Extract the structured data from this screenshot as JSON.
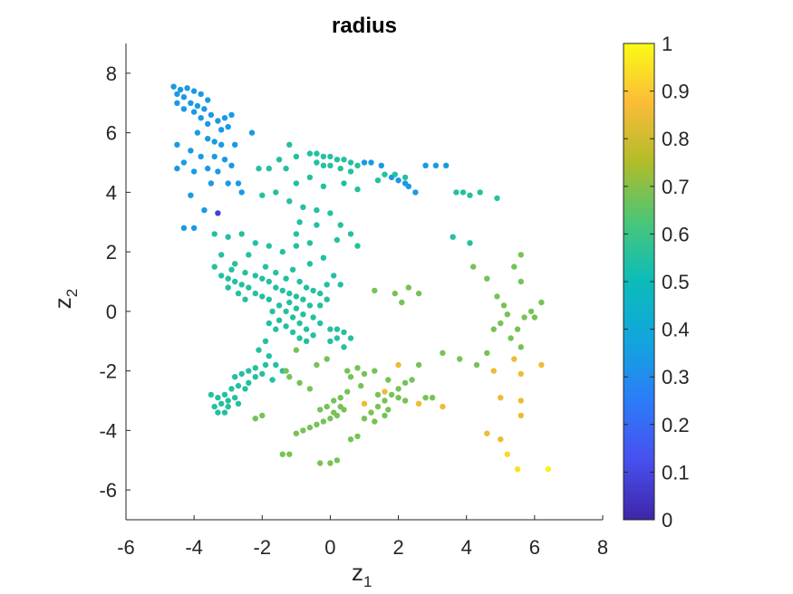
{
  "chart_data": {
    "type": "scatter",
    "title": "radius",
    "xlabel": {
      "base": "z",
      "sub": "1"
    },
    "ylabel": {
      "base": "z",
      "sub": "2"
    },
    "xlim": [
      -6,
      8
    ],
    "ylim": [
      -7,
      9
    ],
    "xticks": [
      "-6",
      "-4",
      "-2",
      "0",
      "2",
      "4",
      "6",
      "8"
    ],
    "yticks": [
      "-6",
      "-4",
      "-2",
      "0",
      "2",
      "4",
      "6",
      "8"
    ],
    "grid": false,
    "colorbar": {
      "colormap": "parula",
      "clim": [
        0,
        1
      ],
      "ticks": [
        "0",
        "0.1",
        "0.2",
        "0.3",
        "0.4",
        "0.5",
        "0.6",
        "0.7",
        "0.8",
        "0.9",
        "1"
      ]
    },
    "points_columns": [
      "z1",
      "z2",
      "radius"
    ],
    "points": [
      [
        -4.6,
        7.55,
        0.34
      ],
      [
        -4.4,
        7.45,
        0.34
      ],
      [
        -4.2,
        7.5,
        0.34
      ],
      [
        -4.0,
        7.4,
        0.34
      ],
      [
        -3.8,
        7.3,
        0.34
      ],
      [
        -3.6,
        7.1,
        0.34
      ],
      [
        -4.5,
        7.3,
        0.34
      ],
      [
        -4.3,
        7.2,
        0.34
      ],
      [
        -4.5,
        7.0,
        0.34
      ],
      [
        -4.1,
        7.0,
        0.34
      ],
      [
        -3.9,
        6.9,
        0.34
      ],
      [
        -3.7,
        6.8,
        0.34
      ],
      [
        -3.5,
        6.6,
        0.34
      ],
      [
        -3.3,
        6.4,
        0.34
      ],
      [
        -3.1,
        6.5,
        0.34
      ],
      [
        -2.9,
        6.6,
        0.34
      ],
      [
        -3.6,
        6.3,
        0.34
      ],
      [
        -3.8,
        6.5,
        0.34
      ],
      [
        -4.0,
        6.7,
        0.34
      ],
      [
        -4.3,
        6.8,
        0.34
      ],
      [
        -3.2,
        6.1,
        0.34
      ],
      [
        -3.0,
        6.2,
        0.34
      ],
      [
        -2.3,
        6.0,
        0.34
      ],
      [
        -3.9,
        6.0,
        0.34
      ],
      [
        -3.6,
        5.8,
        0.34
      ],
      [
        -3.4,
        5.7,
        0.34
      ],
      [
        -3.2,
        5.6,
        0.34
      ],
      [
        -2.8,
        5.6,
        0.34
      ],
      [
        -4.5,
        5.6,
        0.34
      ],
      [
        -4.1,
        5.4,
        0.34
      ],
      [
        -4.5,
        4.8,
        0.34
      ],
      [
        -4.0,
        4.7,
        0.34
      ],
      [
        -3.6,
        4.8,
        0.34
      ],
      [
        -3.3,
        4.7,
        0.34
      ],
      [
        -3.1,
        5.1,
        0.34
      ],
      [
        -3.8,
        5.2,
        0.34
      ],
      [
        -3.4,
        5.2,
        0.34
      ],
      [
        -2.9,
        4.9,
        0.34
      ],
      [
        -4.3,
        5.0,
        0.34
      ],
      [
        -3.5,
        4.3,
        0.34
      ],
      [
        -3.0,
        4.3,
        0.34
      ],
      [
        -2.6,
        4.0,
        0.34
      ],
      [
        -4.1,
        3.9,
        0.34
      ],
      [
        -3.7,
        3.4,
        0.34
      ],
      [
        -4.3,
        2.8,
        0.34
      ],
      [
        -4.0,
        2.8,
        0.34
      ],
      [
        -2.7,
        4.3,
        0.34
      ],
      [
        -3.3,
        3.3,
        0.08
      ],
      [
        1.0,
        5.0,
        0.34
      ],
      [
        1.2,
        5.0,
        0.34
      ],
      [
        1.5,
        4.9,
        0.34
      ],
      [
        2.0,
        4.4,
        0.34
      ],
      [
        2.3,
        4.2,
        0.34
      ],
      [
        2.5,
        4.0,
        0.34
      ],
      [
        1.8,
        4.5,
        0.34
      ],
      [
        2.2,
        4.3,
        0.34
      ],
      [
        2.8,
        4.9,
        0.34
      ],
      [
        3.1,
        4.9,
        0.34
      ],
      [
        3.4,
        4.9,
        0.34
      ],
      [
        -0.6,
        5.3,
        0.55
      ],
      [
        -0.4,
        5.3,
        0.55
      ],
      [
        -0.2,
        5.2,
        0.55
      ],
      [
        0.0,
        5.2,
        0.55
      ],
      [
        0.2,
        5.1,
        0.55
      ],
      [
        0.4,
        5.1,
        0.55
      ],
      [
        0.6,
        5.0,
        0.55
      ],
      [
        0.8,
        4.9,
        0.55
      ],
      [
        -0.4,
        5.0,
        0.55
      ],
      [
        -0.2,
        4.9,
        0.55
      ],
      [
        0.0,
        4.9,
        0.55
      ],
      [
        0.3,
        4.8,
        0.55
      ],
      [
        0.6,
        4.7,
        0.55
      ],
      [
        -1.0,
        5.2,
        0.55
      ],
      [
        -1.2,
        5.6,
        0.55
      ],
      [
        -1.5,
        5.1,
        0.55
      ],
      [
        -1.8,
        4.8,
        0.55
      ],
      [
        -2.1,
        4.8,
        0.55
      ],
      [
        -1.3,
        4.8,
        0.55
      ],
      [
        -0.6,
        4.5,
        0.55
      ],
      [
        -0.2,
        4.2,
        0.55
      ],
      [
        0.4,
        4.3,
        0.55
      ],
      [
        0.8,
        4.1,
        0.55
      ],
      [
        1.4,
        4.4,
        0.55
      ],
      [
        1.6,
        4.6,
        0.55
      ],
      [
        1.9,
        4.6,
        0.55
      ],
      [
        2.2,
        4.5,
        0.55
      ],
      [
        -1.0,
        4.3,
        0.55
      ],
      [
        -1.6,
        4.0,
        0.55
      ],
      [
        -2.0,
        3.9,
        0.55
      ],
      [
        -1.2,
        3.7,
        0.55
      ],
      [
        -0.8,
        3.5,
        0.55
      ],
      [
        -0.4,
        3.4,
        0.55
      ],
      [
        -0.9,
        3.0,
        0.55
      ],
      [
        -0.4,
        2.9,
        0.55
      ],
      [
        0.0,
        3.3,
        0.55
      ],
      [
        0.3,
        2.9,
        0.55
      ],
      [
        0.6,
        2.6,
        0.55
      ],
      [
        0.2,
        2.4,
        0.55
      ],
      [
        0.8,
        2.2,
        0.55
      ],
      [
        -1.0,
        2.6,
        0.55
      ],
      [
        -1.0,
        2.2,
        0.55
      ],
      [
        -0.6,
        2.3,
        0.55
      ],
      [
        -1.4,
        2.0,
        0.55
      ],
      [
        -1.8,
        2.2,
        0.55
      ],
      [
        -2.2,
        2.3,
        0.55
      ],
      [
        -2.6,
        2.6,
        0.55
      ],
      [
        -3.0,
        2.5,
        0.55
      ],
      [
        -3.4,
        2.6,
        0.55
      ],
      [
        -2.4,
        1.9,
        0.55
      ],
      [
        -2.8,
        1.6,
        0.55
      ],
      [
        -3.2,
        1.9,
        0.55
      ],
      [
        -3.4,
        1.5,
        0.55
      ],
      [
        3.7,
        4.0,
        0.55
      ],
      [
        3.9,
        4.0,
        0.55
      ],
      [
        4.1,
        3.9,
        0.55
      ],
      [
        4.4,
        4.0,
        0.55
      ],
      [
        4.9,
        3.8,
        0.55
      ],
      [
        3.6,
        2.5,
        0.55
      ],
      [
        4.1,
        2.3,
        0.55
      ],
      [
        -3.2,
        1.2,
        0.55
      ],
      [
        -3.0,
        1.1,
        0.55
      ],
      [
        -2.8,
        1.0,
        0.55
      ],
      [
        -2.6,
        0.9,
        0.55
      ],
      [
        -2.4,
        0.8,
        0.55
      ],
      [
        -2.2,
        0.6,
        0.55
      ],
      [
        -2.0,
        0.5,
        0.55
      ],
      [
        -1.8,
        0.4,
        0.55
      ],
      [
        -3.0,
        0.8,
        0.55
      ],
      [
        -2.7,
        0.6,
        0.55
      ],
      [
        -2.5,
        0.4,
        0.55
      ],
      [
        -2.9,
        1.4,
        0.55
      ],
      [
        -2.5,
        1.3,
        0.55
      ],
      [
        -2.2,
        1.2,
        0.55
      ],
      [
        -2.0,
        1.1,
        0.55
      ],
      [
        -1.8,
        1.0,
        0.55
      ],
      [
        -1.6,
        0.8,
        0.55
      ],
      [
        -1.4,
        0.7,
        0.55
      ],
      [
        -1.2,
        0.6,
        0.55
      ],
      [
        -1.0,
        0.5,
        0.55
      ],
      [
        -0.8,
        0.4,
        0.55
      ],
      [
        -1.9,
        1.5,
        0.55
      ],
      [
        -1.6,
        1.3,
        0.55
      ],
      [
        -1.3,
        1.1,
        0.55
      ],
      [
        -1.1,
        1.4,
        0.55
      ],
      [
        -0.9,
        1.0,
        0.55
      ],
      [
        -0.7,
        0.8,
        0.55
      ],
      [
        -0.5,
        0.7,
        0.55
      ],
      [
        -0.3,
        0.6,
        0.55
      ],
      [
        -0.1,
        0.9,
        0.55
      ],
      [
        0.1,
        1.2,
        0.55
      ],
      [
        0.3,
        0.9,
        0.55
      ],
      [
        -0.6,
        1.6,
        0.55
      ],
      [
        -0.2,
        1.8,
        0.55
      ],
      [
        -1.5,
        0.2,
        0.55
      ],
      [
        -1.3,
        0.0,
        0.55
      ],
      [
        -1.1,
        -0.2,
        0.55
      ],
      [
        -0.9,
        -0.4,
        0.55
      ],
      [
        -0.7,
        -0.6,
        0.55
      ],
      [
        -0.5,
        -0.8,
        0.55
      ],
      [
        -1.7,
        0.0,
        0.55
      ],
      [
        -1.5,
        -0.3,
        0.55
      ],
      [
        -1.3,
        -0.5,
        0.55
      ],
      [
        -1.1,
        -0.7,
        0.55
      ],
      [
        -0.9,
        -0.9,
        0.55
      ],
      [
        -0.7,
        -1.0,
        0.55
      ],
      [
        -1.8,
        -0.4,
        0.55
      ],
      [
        -1.6,
        -0.6,
        0.55
      ],
      [
        -0.5,
        -0.2,
        0.55
      ],
      [
        -0.3,
        -0.4,
        0.55
      ],
      [
        -0.3,
        0.2,
        0.55
      ],
      [
        -0.1,
        0.4,
        0.55
      ],
      [
        -1.2,
        0.3,
        0.55
      ],
      [
        -1.0,
        0.1,
        0.55
      ],
      [
        -0.8,
        -0.1,
        0.55
      ],
      [
        -0.6,
        0.2,
        0.55
      ],
      [
        0.0,
        -0.6,
        0.55
      ],
      [
        0.2,
        -0.6,
        0.55
      ],
      [
        0.4,
        -0.7,
        0.55
      ],
      [
        0.6,
        -0.9,
        0.55
      ],
      [
        0.4,
        -1.2,
        0.55
      ],
      [
        0.2,
        -0.9,
        0.55
      ],
      [
        0.0,
        -1.0,
        0.55
      ],
      [
        -1.9,
        -1.0,
        0.55
      ],
      [
        -2.1,
        -1.3,
        0.55
      ],
      [
        -1.8,
        -1.5,
        0.55
      ],
      [
        -1.6,
        -1.8,
        0.55
      ],
      [
        -1.4,
        -2.0,
        0.55
      ],
      [
        -1.9,
        -1.8,
        0.55
      ],
      [
        -2.2,
        -1.9,
        0.55
      ],
      [
        -2.4,
        -2.0,
        0.55
      ],
      [
        -2.6,
        -2.1,
        0.55
      ],
      [
        -2.8,
        -2.2,
        0.55
      ],
      [
        -2.4,
        -2.4,
        0.55
      ],
      [
        -2.2,
        -2.2,
        0.55
      ],
      [
        -2.0,
        -2.1,
        0.55
      ],
      [
        -1.7,
        -2.3,
        0.55
      ],
      [
        -2.7,
        -2.5,
        0.55
      ],
      [
        -2.5,
        -2.6,
        0.55
      ],
      [
        -3.1,
        -2.8,
        0.55
      ],
      [
        -3.0,
        -3.0,
        0.55
      ],
      [
        -2.8,
        -2.9,
        0.55
      ],
      [
        -3.3,
        -2.9,
        0.55
      ],
      [
        -3.2,
        -3.1,
        0.55
      ],
      [
        -3.4,
        -3.2,
        0.55
      ],
      [
        -3.0,
        -3.2,
        0.55
      ],
      [
        -2.7,
        -3.1,
        0.55
      ],
      [
        -3.3,
        -3.4,
        0.55
      ],
      [
        -3.1,
        -3.4,
        0.55
      ],
      [
        -3.5,
        -2.8,
        0.55
      ],
      [
        -2.9,
        -2.6,
        0.55
      ],
      [
        -1.0,
        -1.3,
        0.68
      ],
      [
        -1.3,
        -2.0,
        0.68
      ],
      [
        -1.2,
        -2.2,
        0.68
      ],
      [
        -0.9,
        -2.4,
        0.68
      ],
      [
        -0.6,
        -2.6,
        0.68
      ],
      [
        -0.4,
        -1.8,
        0.68
      ],
      [
        -0.1,
        -1.6,
        0.68
      ],
      [
        0.5,
        -2.0,
        0.68
      ],
      [
        0.8,
        -1.9,
        0.68
      ],
      [
        1.0,
        -2.1,
        0.68
      ],
      [
        1.3,
        -2.0,
        0.68
      ],
      [
        1.7,
        -2.3,
        0.68
      ],
      [
        2.2,
        -2.4,
        0.68
      ],
      [
        2.4,
        -2.3,
        0.68
      ],
      [
        2.0,
        -2.6,
        0.68
      ],
      [
        1.8,
        -2.8,
        0.68
      ],
      [
        2.0,
        -2.9,
        0.68
      ],
      [
        2.2,
        -3.0,
        0.68
      ],
      [
        1.6,
        -3.0,
        0.68
      ],
      [
        1.4,
        -3.2,
        0.68
      ],
      [
        1.2,
        -3.4,
        0.68
      ],
      [
        1.0,
        -3.6,
        0.68
      ],
      [
        1.3,
        -3.7,
        0.68
      ],
      [
        0.5,
        -2.7,
        0.68
      ],
      [
        0.3,
        -2.9,
        0.68
      ],
      [
        0.1,
        -3.0,
        0.68
      ],
      [
        -0.1,
        -3.2,
        0.68
      ],
      [
        -0.3,
        -3.3,
        0.68
      ],
      [
        0.1,
        -3.4,
        0.68
      ],
      [
        0.3,
        -3.2,
        0.68
      ],
      [
        0.0,
        -3.6,
        0.68
      ],
      [
        -0.2,
        -3.7,
        0.68
      ],
      [
        -0.4,
        -3.8,
        0.68
      ],
      [
        -0.6,
        -3.9,
        0.68
      ],
      [
        -0.8,
        -4.0,
        0.68
      ],
      [
        -1.0,
        -4.1,
        0.68
      ],
      [
        0.2,
        -3.5,
        0.68
      ],
      [
        0.4,
        -3.3,
        0.68
      ],
      [
        0.8,
        -4.2,
        0.68
      ],
      [
        0.6,
        -4.3,
        0.68
      ],
      [
        -1.4,
        -4.8,
        0.68
      ],
      [
        -1.2,
        -4.8,
        0.68
      ],
      [
        -0.3,
        -5.1,
        0.68
      ],
      [
        0.0,
        -5.1,
        0.68
      ],
      [
        0.2,
        -5.0,
        0.68
      ],
      [
        -2.0,
        -3.5,
        0.68
      ],
      [
        -2.2,
        -3.6,
        0.68
      ],
      [
        2.6,
        -1.8,
        0.68
      ],
      [
        2.8,
        -2.9,
        0.68
      ],
      [
        3.0,
        -2.9,
        0.68
      ],
      [
        3.3,
        -1.4,
        0.68
      ],
      [
        3.8,
        -1.6,
        0.68
      ],
      [
        4.3,
        -1.8,
        0.68
      ],
      [
        4.6,
        -1.4,
        0.68
      ],
      [
        1.4,
        -2.8,
        0.68
      ],
      [
        1.6,
        -3.5,
        0.68
      ],
      [
        1.7,
        -3.3,
        0.68
      ],
      [
        0.6,
        -2.2,
        0.68
      ],
      [
        0.9,
        -2.5,
        0.68
      ],
      [
        1.3,
        0.7,
        0.68
      ],
      [
        1.9,
        0.6,
        0.68
      ],
      [
        2.3,
        0.8,
        0.68
      ],
      [
        2.6,
        0.6,
        0.68
      ],
      [
        2.1,
        0.3,
        0.68
      ],
      [
        4.2,
        1.5,
        0.68
      ],
      [
        4.6,
        1.1,
        0.68
      ],
      [
        4.9,
        0.5,
        0.68
      ],
      [
        5.1,
        0.2,
        0.68
      ],
      [
        5.2,
        -0.1,
        0.68
      ],
      [
        5.0,
        -0.4,
        0.68
      ],
      [
        4.8,
        -0.6,
        0.68
      ],
      [
        5.3,
        -0.9,
        0.68
      ],
      [
        5.5,
        -0.6,
        0.68
      ],
      [
        5.6,
        1.0,
        0.68
      ],
      [
        5.7,
        -0.2,
        0.68
      ],
      [
        5.9,
        0.0,
        0.68
      ],
      [
        5.4,
        1.5,
        0.68
      ],
      [
        5.6,
        1.9,
        0.68
      ],
      [
        6.2,
        0.3,
        0.68
      ],
      [
        6.0,
        -0.2,
        0.68
      ],
      [
        5.6,
        -1.2,
        0.68
      ],
      [
        2.0,
        -1.8,
        0.85
      ],
      [
        1.0,
        -3.1,
        0.85
      ],
      [
        1.6,
        -2.7,
        0.85
      ],
      [
        2.6,
        -3.1,
        0.85
      ],
      [
        3.3,
        -3.2,
        0.85
      ],
      [
        4.8,
        -2.0,
        0.85
      ],
      [
        5.4,
        -1.6,
        0.85
      ],
      [
        5.6,
        -2.1,
        0.85
      ],
      [
        6.2,
        -1.8,
        0.85
      ],
      [
        5.0,
        -2.9,
        0.85
      ],
      [
        5.6,
        -3.0,
        0.85
      ],
      [
        5.6,
        -3.5,
        0.85
      ],
      [
        4.6,
        -4.1,
        0.85
      ],
      [
        5.0,
        -4.3,
        0.85
      ],
      [
        5.2,
        -4.8,
        0.93
      ],
      [
        5.5,
        -5.3,
        0.95
      ],
      [
        6.4,
        -5.3,
        0.98
      ]
    ]
  }
}
